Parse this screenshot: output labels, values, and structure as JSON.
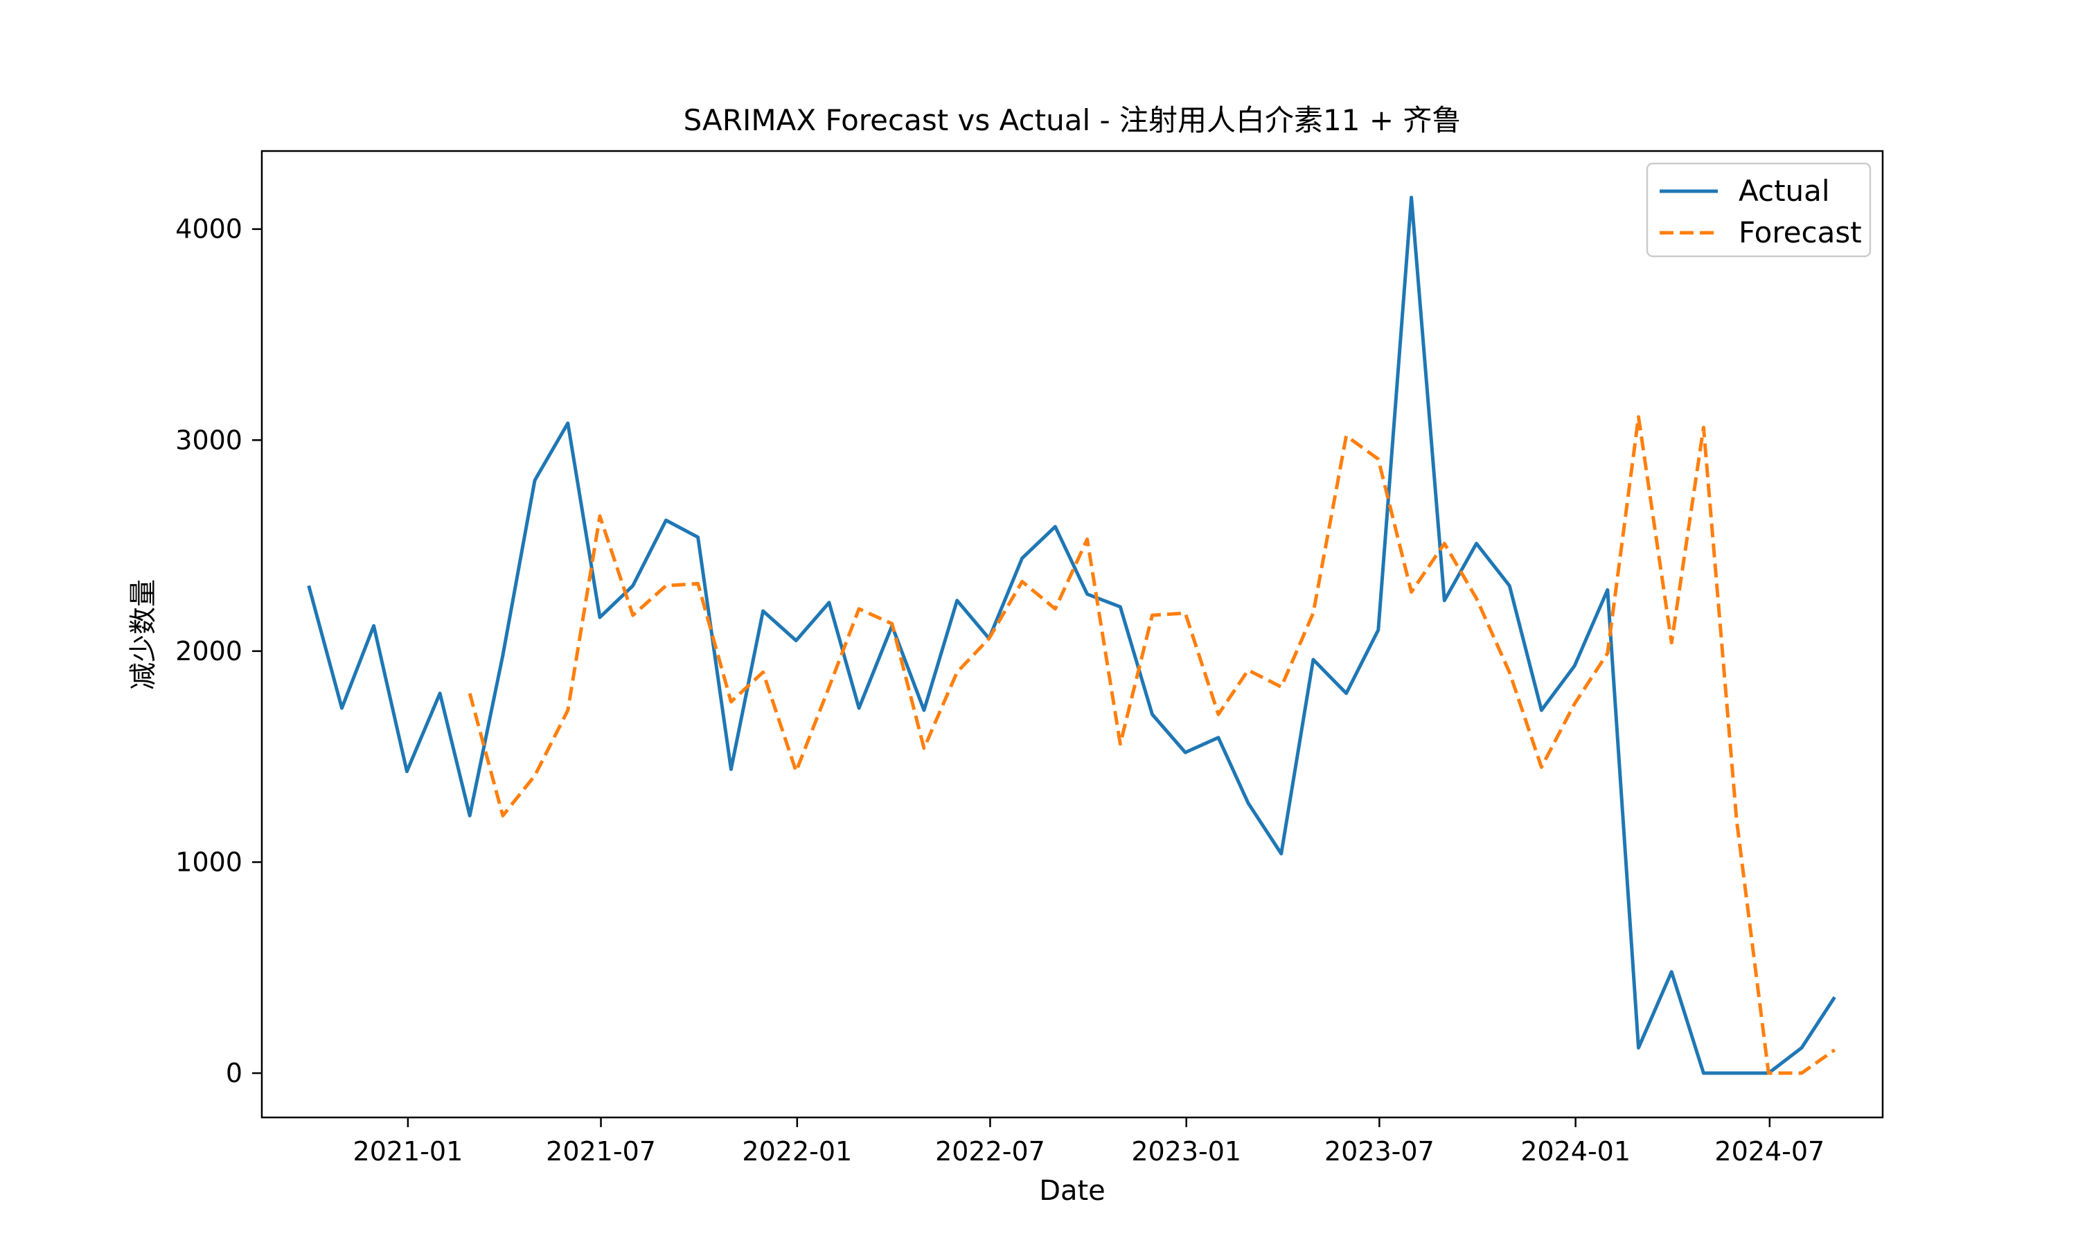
{
  "chart_data": {
    "type": "line",
    "title": "SARIMAX Forecast vs Actual - 注射用人白介素11 + 齐鲁",
    "xlabel": "Date",
    "ylabel": "减少数量",
    "x_range": [
      "2020-08-17",
      "2024-10-15"
    ],
    "ylim": [
      -210,
      4370
    ],
    "grid": false,
    "legend_position": "upper right",
    "x_ticks": [
      {
        "date": "2021-01-01",
        "label": "2021-01"
      },
      {
        "date": "2021-07-01",
        "label": "2021-07"
      },
      {
        "date": "2022-01-01",
        "label": "2022-01"
      },
      {
        "date": "2022-07-01",
        "label": "2022-07"
      },
      {
        "date": "2023-01-01",
        "label": "2023-01"
      },
      {
        "date": "2023-07-01",
        "label": "2023-07"
      },
      {
        "date": "2024-01-01",
        "label": "2024-01"
      },
      {
        "date": "2024-07-01",
        "label": "2024-07"
      }
    ],
    "y_ticks": [
      {
        "value": 0,
        "label": "0"
      },
      {
        "value": 1000,
        "label": "1000"
      },
      {
        "value": 2000,
        "label": "2000"
      },
      {
        "value": 3000,
        "label": "3000"
      },
      {
        "value": 4000,
        "label": "4000"
      }
    ],
    "series": [
      {
        "name": "Actual",
        "color": "#1f77b4",
        "dash": "solid",
        "points": [
          [
            "2020-09-30",
            2310
          ],
          [
            "2020-10-31",
            1730
          ],
          [
            "2020-11-30",
            2120
          ],
          [
            "2020-12-31",
            1430
          ],
          [
            "2021-01-31",
            1800
          ],
          [
            "2021-02-28",
            1220
          ],
          [
            "2021-03-31",
            1980
          ],
          [
            "2021-04-30",
            2810
          ],
          [
            "2021-05-31",
            3080
          ],
          [
            "2021-06-30",
            2160
          ],
          [
            "2021-07-31",
            2310
          ],
          [
            "2021-08-31",
            2620
          ],
          [
            "2021-09-30",
            2540
          ],
          [
            "2021-10-31",
            1440
          ],
          [
            "2021-11-30",
            2190
          ],
          [
            "2021-12-31",
            2050
          ],
          [
            "2022-01-31",
            2230
          ],
          [
            "2022-02-28",
            1730
          ],
          [
            "2022-03-31",
            2120
          ],
          [
            "2022-04-30",
            1720
          ],
          [
            "2022-05-31",
            2240
          ],
          [
            "2022-06-30",
            2060
          ],
          [
            "2022-07-31",
            2440
          ],
          [
            "2022-08-31",
            2590
          ],
          [
            "2022-09-30",
            2270
          ],
          [
            "2022-10-31",
            2210
          ],
          [
            "2022-11-30",
            1700
          ],
          [
            "2022-12-31",
            1520
          ],
          [
            "2023-01-31",
            1590
          ],
          [
            "2023-02-28",
            1280
          ],
          [
            "2023-03-31",
            1040
          ],
          [
            "2023-04-30",
            1960
          ],
          [
            "2023-05-31",
            1800
          ],
          [
            "2023-06-30",
            2100
          ],
          [
            "2023-07-31",
            4150
          ],
          [
            "2023-08-31",
            2240
          ],
          [
            "2023-09-30",
            2510
          ],
          [
            "2023-10-31",
            2310
          ],
          [
            "2023-11-30",
            1720
          ],
          [
            "2023-12-31",
            1930
          ],
          [
            "2024-01-31",
            2290
          ],
          [
            "2024-02-29",
            120
          ],
          [
            "2024-03-31",
            480
          ],
          [
            "2024-04-30",
            0
          ],
          [
            "2024-05-31",
            0
          ],
          [
            "2024-06-30",
            0
          ],
          [
            "2024-07-31",
            120
          ],
          [
            "2024-08-31",
            360
          ]
        ]
      },
      {
        "name": "Forecast",
        "color": "#ff7f0e",
        "dash": "dashed",
        "points": [
          [
            "2021-02-28",
            1800
          ],
          [
            "2021-03-31",
            1220
          ],
          [
            "2021-04-30",
            1410
          ],
          [
            "2021-05-31",
            1720
          ],
          [
            "2021-06-30",
            2640
          ],
          [
            "2021-07-31",
            2170
          ],
          [
            "2021-08-31",
            2310
          ],
          [
            "2021-09-30",
            2320
          ],
          [
            "2021-10-31",
            1760
          ],
          [
            "2021-11-30",
            1900
          ],
          [
            "2021-12-31",
            1430
          ],
          [
            "2022-01-31",
            1830
          ],
          [
            "2022-02-28",
            2200
          ],
          [
            "2022-03-31",
            2130
          ],
          [
            "2022-04-30",
            1540
          ],
          [
            "2022-05-31",
            1900
          ],
          [
            "2022-06-30",
            2060
          ],
          [
            "2022-07-31",
            2330
          ],
          [
            "2022-08-31",
            2200
          ],
          [
            "2022-09-30",
            2530
          ],
          [
            "2022-10-31",
            1560
          ],
          [
            "2022-11-30",
            2170
          ],
          [
            "2022-12-31",
            2180
          ],
          [
            "2023-01-31",
            1700
          ],
          [
            "2023-02-28",
            1910
          ],
          [
            "2023-03-31",
            1830
          ],
          [
            "2023-04-30",
            2180
          ],
          [
            "2023-05-31",
            3020
          ],
          [
            "2023-06-30",
            2910
          ],
          [
            "2023-07-31",
            2280
          ],
          [
            "2023-08-31",
            2510
          ],
          [
            "2023-09-30",
            2250
          ],
          [
            "2023-10-31",
            1900
          ],
          [
            "2023-11-30",
            1450
          ],
          [
            "2023-12-31",
            1750
          ],
          [
            "2024-01-31",
            1990
          ],
          [
            "2024-02-29",
            3110
          ],
          [
            "2024-03-31",
            2040
          ],
          [
            "2024-04-30",
            3060
          ],
          [
            "2024-05-31",
            1200
          ],
          [
            "2024-06-30",
            0
          ],
          [
            "2024-07-31",
            0
          ],
          [
            "2024-08-31",
            110
          ]
        ]
      }
    ]
  }
}
